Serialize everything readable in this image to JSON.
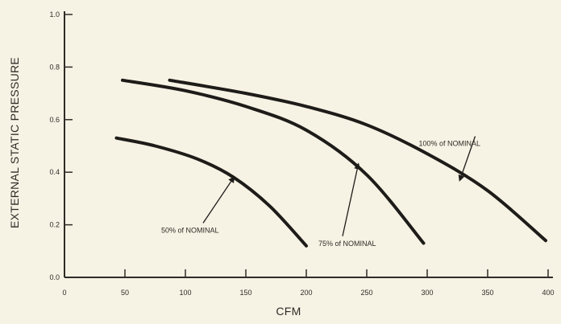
{
  "chart_data": {
    "type": "line",
    "title": "",
    "xlabel": "CFM",
    "ylabel": "EXTERNAL STATIC PRESSURE",
    "xlim": [
      0,
      400
    ],
    "ylim": [
      0,
      1.0
    ],
    "x_ticks": [
      0,
      50,
      100,
      150,
      200,
      250,
      300,
      350,
      400
    ],
    "x_tick_labels": [
      "0",
      "50",
      "100",
      "150",
      "200",
      "250",
      "300",
      "350",
      "400"
    ],
    "y_ticks": [
      0.0,
      0.2,
      0.4,
      0.6,
      0.8,
      1.0
    ],
    "y_tick_labels": [
      "0.0",
      "0.2",
      "0.4",
      "0.6",
      "0.8",
      "1.0"
    ],
    "grid": false,
    "colors": {
      "curve": "#1e1c19",
      "axis": "#2f2c27",
      "background": "#f6f2e4"
    },
    "series": [
      {
        "name": "50% of NOMINAL",
        "x": [
          43,
          75,
          110,
          140,
          170,
          200
        ],
        "y": [
          0.53,
          0.5,
          0.45,
          0.38,
          0.27,
          0.12
        ]
      },
      {
        "name": "75% of NOMINAL",
        "x": [
          48,
          100,
          150,
          200,
          250,
          297
        ],
        "y": [
          0.75,
          0.71,
          0.65,
          0.56,
          0.39,
          0.13
        ]
      },
      {
        "name": "100% of NOMINAL",
        "x": [
          87,
          150,
          200,
          250,
          300,
          350,
          398
        ],
        "y": [
          0.75,
          0.7,
          0.65,
          0.58,
          0.47,
          0.33,
          0.14
        ]
      }
    ],
    "annotations": [
      {
        "series": 0,
        "text": "50% of NOMINAL",
        "label_x": 80,
        "label_y": 0.17,
        "arrow_x": 140,
        "arrow_y": 0.38
      },
      {
        "series": 1,
        "text": "75% of NOMINAL",
        "label_x": 210,
        "label_y": 0.12,
        "arrow_x": 243,
        "arrow_y": 0.43
      },
      {
        "series": 2,
        "text": "100% of NOMINAL",
        "label_x": 293,
        "label_y": 0.5,
        "arrow_x": 327,
        "arrow_y": 0.37
      }
    ]
  }
}
